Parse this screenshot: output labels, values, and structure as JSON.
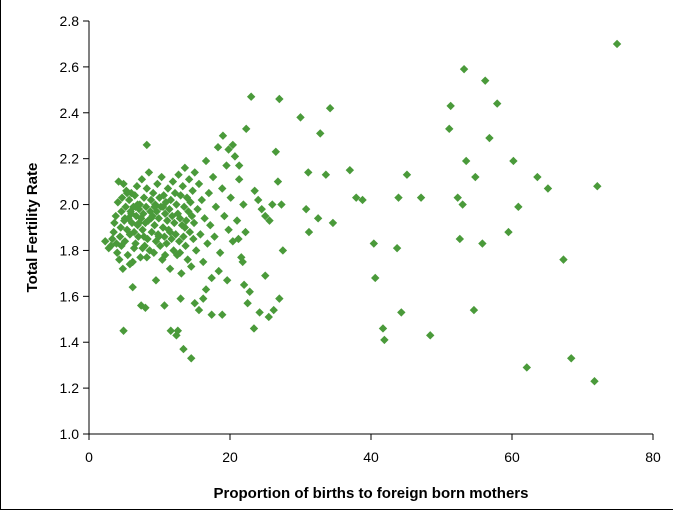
{
  "chart_data": {
    "type": "scatter",
    "xlabel": "Proportion of births to foreign born mothers",
    "ylabel": "Total Fertility Rate",
    "xlim": [
      0,
      80
    ],
    "ylim": [
      1.0,
      2.8
    ],
    "xticks": [
      0,
      20,
      40,
      60,
      80
    ],
    "xtick_labels": [
      "0",
      "20",
      "40",
      "60",
      "80"
    ],
    "yticks": [
      1.0,
      1.2,
      1.4,
      1.6,
      1.8,
      2.0,
      2.2,
      2.4,
      2.6,
      2.8
    ],
    "ytick_labels": [
      "1.0",
      "1.2",
      "1.4",
      "1.6",
      "1.8",
      "2.0",
      "2.2",
      "2.4",
      "2.6",
      "2.8"
    ],
    "grid": false,
    "legend": "none",
    "marker": "diamond",
    "marker_color": "#4a9a3a",
    "points": [
      [
        2.3,
        1.84
      ],
      [
        2.8,
        1.81
      ],
      [
        3.1,
        1.82
      ],
      [
        3.3,
        1.85
      ],
      [
        3.5,
        1.88
      ],
      [
        3.6,
        1.92
      ],
      [
        3.8,
        1.95
      ],
      [
        3.9,
        1.83
      ],
      [
        4.0,
        1.79
      ],
      [
        4.1,
        2.01
      ],
      [
        4.2,
        2.1
      ],
      [
        4.3,
        1.76
      ],
      [
        4.4,
        1.86
      ],
      [
        4.5,
        1.9
      ],
      [
        4.6,
        1.97
      ],
      [
        4.7,
        2.03
      ],
      [
        4.8,
        1.72
      ],
      [
        4.9,
        2.09
      ],
      [
        5.0,
        1.93
      ],
      [
        5.1,
        1.84
      ],
      [
        5.2,
        1.99
      ],
      [
        5.3,
        2.06
      ],
      [
        5.4,
        1.89
      ],
      [
        5.5,
        1.78
      ],
      [
        5.6,
        1.94
      ],
      [
        5.7,
        2.02
      ],
      [
        5.8,
        1.87
      ],
      [
        5.9,
        1.97
      ],
      [
        6.0,
        2.05
      ],
      [
        6.1,
        1.92
      ],
      [
        6.2,
        1.75
      ],
      [
        6.3,
        1.99
      ],
      [
        6.4,
        1.88
      ],
      [
        6.5,
        2.04
      ],
      [
        6.6,
        1.83
      ],
      [
        6.7,
        1.95
      ],
      [
        6.8,
        2.08
      ],
      [
        6.9,
        1.91
      ],
      [
        7.0,
        1.86
      ],
      [
        7.1,
        1.98
      ],
      [
        7.2,
        2.0
      ],
      [
        7.3,
        1.77
      ],
      [
        7.4,
        1.94
      ],
      [
        7.5,
        2.11
      ],
      [
        7.6,
        1.89
      ],
      [
        7.7,
        1.96
      ],
      [
        7.8,
        2.03
      ],
      [
        7.9,
        1.82
      ],
      [
        8.0,
        1.92
      ],
      [
        8.1,
        1.99
      ],
      [
        8.2,
        2.07
      ],
      [
        8.3,
        1.85
      ],
      [
        8.4,
        1.93
      ],
      [
        8.5,
        2.14
      ],
      [
        8.6,
        1.8
      ],
      [
        8.7,
        1.97
      ],
      [
        8.8,
        2.02
      ],
      [
        8.9,
        1.88
      ],
      [
        9.0,
        1.95
      ],
      [
        9.1,
        2.05
      ],
      [
        9.2,
        1.79
      ],
      [
        9.3,
        1.91
      ],
      [
        9.4,
        2.0
      ],
      [
        9.5,
        1.84
      ],
      [
        9.6,
        1.97
      ],
      [
        9.7,
        2.09
      ],
      [
        9.8,
        1.87
      ],
      [
        9.9,
        1.94
      ],
      [
        10.0,
        2.03
      ],
      [
        10.1,
        1.82
      ],
      [
        10.2,
        1.99
      ],
      [
        10.3,
        2.12
      ],
      [
        10.4,
        1.76
      ],
      [
        10.5,
        1.9
      ],
      [
        10.6,
        2.04
      ],
      [
        10.7,
        1.86
      ],
      [
        10.8,
        1.96
      ],
      [
        10.9,
        2.01
      ],
      [
        11.0,
        1.83
      ],
      [
        11.1,
        1.93
      ],
      [
        11.2,
        2.07
      ],
      [
        11.3,
        1.89
      ],
      [
        11.4,
        1.98
      ],
      [
        11.5,
        1.72
      ],
      [
        11.6,
        2.02
      ],
      [
        11.7,
        1.85
      ],
      [
        11.8,
        1.95
      ],
      [
        11.9,
        2.1
      ],
      [
        12.0,
        1.8
      ],
      [
        12.1,
        1.92
      ],
      [
        12.2,
        2.05
      ],
      [
        12.3,
        1.87
      ],
      [
        12.4,
        2.0
      ],
      [
        12.5,
        1.78
      ],
      [
        12.6,
        1.96
      ],
      [
        12.7,
        2.13
      ],
      [
        12.8,
        1.84
      ],
      [
        12.9,
        1.94
      ],
      [
        13.0,
        2.04
      ],
      [
        13.1,
        1.7
      ],
      [
        13.2,
        1.91
      ],
      [
        13.3,
        2.08
      ],
      [
        13.4,
        1.86
      ],
      [
        13.5,
        1.99
      ],
      [
        13.6,
        2.16
      ],
      [
        13.7,
        1.82
      ],
      [
        13.8,
        1.93
      ],
      [
        13.9,
        2.03
      ],
      [
        14.0,
        1.76
      ],
      [
        14.1,
        1.97
      ],
      [
        14.2,
        2.11
      ],
      [
        14.3,
        1.88
      ],
      [
        14.4,
        2.01
      ],
      [
        14.5,
        1.73
      ],
      [
        14.6,
        1.95
      ],
      [
        14.7,
        2.06
      ],
      [
        14.8,
        1.85
      ],
      [
        14.9,
        1.92
      ],
      [
        15.0,
        2.14
      ],
      [
        15.2,
        1.8
      ],
      [
        15.4,
        1.98
      ],
      [
        15.6,
        2.09
      ],
      [
        15.8,
        1.87
      ],
      [
        16.0,
        2.02
      ],
      [
        16.2,
        1.75
      ],
      [
        16.4,
        1.94
      ],
      [
        16.6,
        2.19
      ],
      [
        16.8,
        1.83
      ],
      [
        17.0,
        2.05
      ],
      [
        17.2,
        1.91
      ],
      [
        17.4,
        1.68
      ],
      [
        17.6,
        2.12
      ],
      [
        17.8,
        1.86
      ],
      [
        18.0,
        1.99
      ],
      [
        18.3,
        2.25
      ],
      [
        18.6,
        1.79
      ],
      [
        18.9,
        2.07
      ],
      [
        19.2,
        1.95
      ],
      [
        19.5,
        2.17
      ],
      [
        19.8,
        1.89
      ],
      [
        20.1,
        2.03
      ],
      [
        20.4,
        1.84
      ],
      [
        20.7,
        2.21
      ],
      [
        21.0,
        1.93
      ],
      [
        21.3,
        2.11
      ],
      [
        21.6,
        1.77
      ],
      [
        21.9,
        2.0
      ],
      [
        22.2,
        1.88
      ],
      [
        5.4,
        2.05
      ],
      [
        5.8,
        1.74
      ],
      [
        6.4,
        1.81
      ],
      [
        6.9,
        2.0
      ],
      [
        7.6,
        1.81
      ],
      [
        8.2,
        1.77
      ],
      [
        9.3,
        1.99
      ],
      [
        10.8,
        1.78
      ],
      [
        11.5,
        1.88
      ],
      [
        12.9,
        1.79
      ],
      [
        4.6,
        1.82
      ],
      [
        6.0,
        1.96
      ],
      [
        7.1,
        1.92
      ],
      [
        8.8,
        1.94
      ],
      [
        9.9,
        1.86
      ],
      [
        6.6,
        1.99
      ],
      [
        5.1,
        1.94
      ],
      [
        7.8,
        1.86
      ],
      [
        10.5,
        1.99
      ],
      [
        13.6,
        1.9
      ],
      [
        4.9,
        1.45
      ],
      [
        6.2,
        1.64
      ],
      [
        7.4,
        1.56
      ],
      [
        8.0,
        1.55
      ],
      [
        9.5,
        1.67
      ],
      [
        10.7,
        1.56
      ],
      [
        11.6,
        1.45
      ],
      [
        12.4,
        1.43
      ],
      [
        12.6,
        1.45
      ],
      [
        13.0,
        1.59
      ],
      [
        13.4,
        1.37
      ],
      [
        14.5,
        1.33
      ],
      [
        15.0,
        1.57
      ],
      [
        15.6,
        1.54
      ],
      [
        16.2,
        1.59
      ],
      [
        16.6,
        1.63
      ],
      [
        17.4,
        1.52
      ],
      [
        18.4,
        1.71
      ],
      [
        18.9,
        1.52
      ],
      [
        19.6,
        1.67
      ],
      [
        21.2,
        1.85
      ],
      [
        21.8,
        1.75
      ],
      [
        22.0,
        1.65
      ],
      [
        22.5,
        1.57
      ],
      [
        22.8,
        1.62
      ],
      [
        23.4,
        1.46
      ],
      [
        24.2,
        1.53
      ],
      [
        25.0,
        1.69
      ],
      [
        25.5,
        1.51
      ],
      [
        26.2,
        1.54
      ],
      [
        27.0,
        1.59
      ],
      [
        27.5,
        1.8
      ],
      [
        8.2,
        2.26
      ],
      [
        19.0,
        2.3
      ],
      [
        19.8,
        2.24
      ],
      [
        20.4,
        2.26
      ],
      [
        21.3,
        2.17
      ],
      [
        22.3,
        2.33
      ],
      [
        23.0,
        2.47
      ],
      [
        23.5,
        2.06
      ],
      [
        24.0,
        2.02
      ],
      [
        24.5,
        1.98
      ],
      [
        25.0,
        1.95
      ],
      [
        25.6,
        1.93
      ],
      [
        26.0,
        2.0
      ],
      [
        26.5,
        2.23
      ],
      [
        26.8,
        2.1
      ],
      [
        27.0,
        2.46
      ],
      [
        27.3,
        2.0
      ],
      [
        30.0,
        2.38
      ],
      [
        30.8,
        1.98
      ],
      [
        31.1,
        2.14
      ],
      [
        31.2,
        1.88
      ],
      [
        32.5,
        1.94
      ],
      [
        32.8,
        2.31
      ],
      [
        33.6,
        2.13
      ],
      [
        34.2,
        2.42
      ],
      [
        34.6,
        1.92
      ],
      [
        37.0,
        2.15
      ],
      [
        37.9,
        2.03
      ],
      [
        38.8,
        2.02
      ],
      [
        40.4,
        1.83
      ],
      [
        40.6,
        1.68
      ],
      [
        41.7,
        1.46
      ],
      [
        41.9,
        1.41
      ],
      [
        43.7,
        1.81
      ],
      [
        43.9,
        2.03
      ],
      [
        44.3,
        1.53
      ],
      [
        45.1,
        2.13
      ],
      [
        47.1,
        2.03
      ],
      [
        48.4,
        1.43
      ],
      [
        51.1,
        2.33
      ],
      [
        51.3,
        2.43
      ],
      [
        52.3,
        2.03
      ],
      [
        52.6,
        1.85
      ],
      [
        53.0,
        2.0
      ],
      [
        53.2,
        2.59
      ],
      [
        53.5,
        2.19
      ],
      [
        54.6,
        1.54
      ],
      [
        54.8,
        2.12
      ],
      [
        55.8,
        1.83
      ],
      [
        56.2,
        2.54
      ],
      [
        56.8,
        2.29
      ],
      [
        57.9,
        2.44
      ],
      [
        59.5,
        1.88
      ],
      [
        60.2,
        2.19
      ],
      [
        60.9,
        1.99
      ],
      [
        62.1,
        1.29
      ],
      [
        63.6,
        2.12
      ],
      [
        65.1,
        2.07
      ],
      [
        67.3,
        1.76
      ],
      [
        68.4,
        1.33
      ],
      [
        71.7,
        1.23
      ],
      [
        72.1,
        2.08
      ],
      [
        74.9,
        2.7
      ]
    ]
  }
}
